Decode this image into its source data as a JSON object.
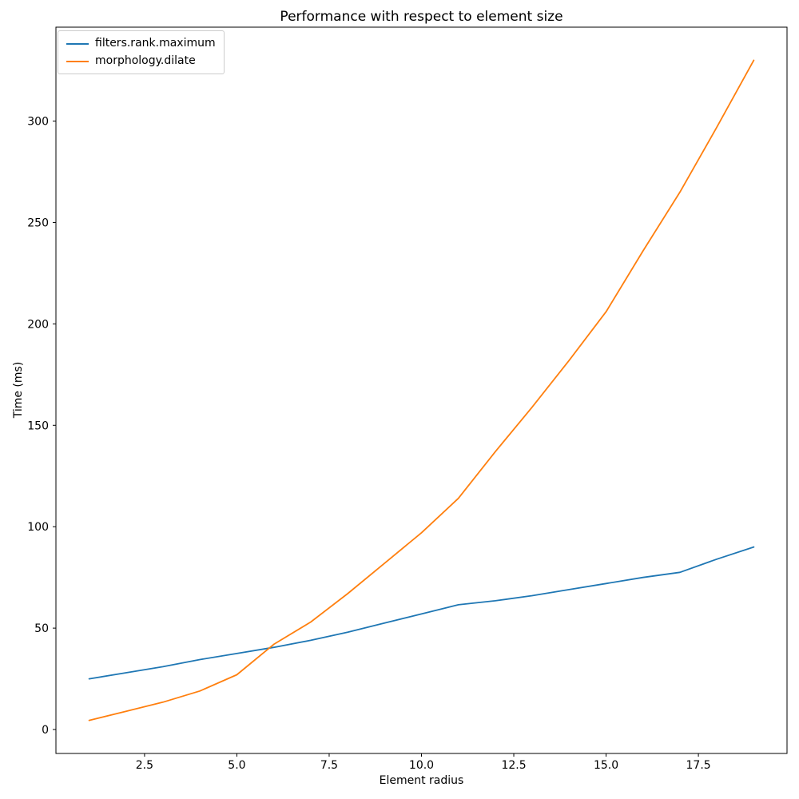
{
  "chart_data": {
    "type": "line",
    "title": "Performance with respect to element size",
    "xlabel": "Element radius",
    "ylabel": "Time (ms)",
    "x": [
      1,
      2,
      3,
      4,
      5,
      6,
      7,
      8,
      9,
      10,
      11,
      12,
      13,
      14,
      15,
      16,
      17,
      18,
      19
    ],
    "series": [
      {
        "name": "filters.rank.maximum",
        "color": "#1f77b4",
        "values": [
          25,
          28,
          31,
          34.5,
          37.5,
          40.5,
          44,
          48,
          52.5,
          57,
          61.5,
          63.5,
          66,
          69,
          72,
          75,
          77.5,
          84,
          90
        ]
      },
      {
        "name": "morphology.dilate",
        "color": "#ff7f0e",
        "values": [
          4.5,
          9,
          13.5,
          19,
          27,
          42,
          53,
          67,
          82,
          97,
          114,
          137,
          159,
          182,
          206,
          236,
          265,
          297,
          330
        ]
      }
    ],
    "xticks": [
      2.5,
      5.0,
      7.5,
      10.0,
      12.5,
      15.0,
      17.5
    ],
    "xtick_labels": [
      "2.5",
      "5.0",
      "7.5",
      "10.0",
      "12.5",
      "15.0",
      "17.5"
    ],
    "yticks": [
      0,
      50,
      100,
      150,
      200,
      250,
      300
    ],
    "ytick_labels": [
      "0",
      "50",
      "100",
      "150",
      "200",
      "250",
      "300"
    ],
    "xlim": [
      0.1,
      19.9
    ],
    "ylim": [
      -11.8,
      346.3
    ],
    "grid": false,
    "legend_position": "upper left"
  },
  "colors": {
    "spine": "#000000",
    "tick_text": "#000000",
    "background": "#ffffff",
    "legend_border": "#cccccc"
  }
}
